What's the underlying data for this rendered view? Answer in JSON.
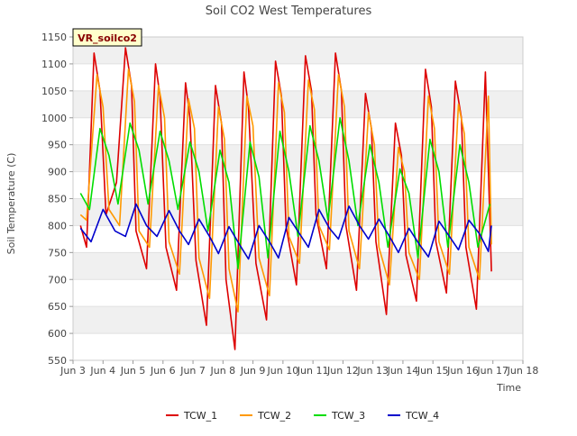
{
  "chart_data": {
    "type": "line",
    "title": "Soil CO2 West Temperatures",
    "xlabel": "Time",
    "ylabel": "Soil Temperature (C)",
    "ylim": [
      550,
      1150
    ],
    "xlim": [
      3,
      18
    ],
    "yticks": [
      550,
      600,
      650,
      700,
      750,
      800,
      850,
      900,
      950,
      1000,
      1050,
      1100,
      1150
    ],
    "xticks": [
      {
        "v": 3,
        "label": "Jun 3"
      },
      {
        "v": 4,
        "label": "Jun 4"
      },
      {
        "v": 5,
        "label": "Jun 5"
      },
      {
        "v": 6,
        "label": "Jun 6"
      },
      {
        "v": 7,
        "label": "Jun 7"
      },
      {
        "v": 8,
        "label": "Jun 8"
      },
      {
        "v": 9,
        "label": "Jun 9"
      },
      {
        "v": 10,
        "label": "Jun 10"
      },
      {
        "v": 11,
        "label": "Jun 11"
      },
      {
        "v": 12,
        "label": "Jun 12"
      },
      {
        "v": 13,
        "label": "Jun 13"
      },
      {
        "v": 14,
        "label": "Jun 14"
      },
      {
        "v": 15,
        "label": "Jun 15"
      },
      {
        "v": 16,
        "label": "Jun 16"
      },
      {
        "v": 17,
        "label": "Jun 17"
      },
      {
        "v": 18,
        "label": "Jun 18"
      }
    ],
    "grid": true,
    "legend_position": "bottom",
    "annotation": "VR_soilco2",
    "x_units": "day of June",
    "series": [
      {
        "name": "TCW_1",
        "color": "#dd0000",
        "x": [
          3.25,
          3.45,
          3.7,
          3.9,
          4.1,
          4.45,
          4.75,
          4.95,
          5.1,
          5.45,
          5.75,
          5.9,
          6.1,
          6.45,
          6.75,
          6.9,
          7.1,
          7.45,
          7.75,
          7.95,
          8.1,
          8.4,
          8.7,
          8.85,
          9.1,
          9.45,
          9.75,
          9.95,
          10.1,
          10.45,
          10.75,
          10.95,
          11.1,
          11.45,
          11.75,
          11.95,
          12.1,
          12.45,
          12.75,
          12.95,
          13.1,
          13.45,
          13.75,
          13.95,
          14.1,
          14.45,
          14.75,
          14.95,
          15.1,
          15.45,
          15.75,
          15.95,
          16.1,
          16.45,
          16.75,
          16.95
        ],
        "y": [
          800,
          760,
          1120,
          1050,
          820,
          880,
          1130,
          1060,
          790,
          720,
          1100,
          1040,
          760,
          680,
          1065,
          1000,
          735,
          615,
          1060,
          990,
          700,
          570,
          1085,
          1020,
          730,
          625,
          1105,
          1040,
          800,
          690,
          1115,
          1050,
          820,
          720,
          1120,
          1050,
          800,
          680,
          1045,
          980,
          770,
          635,
          990,
          930,
          745,
          660,
          1090,
          1020,
          770,
          675,
          1068,
          1000,
          760,
          645,
          1085,
          715
        ]
      },
      {
        "name": "TCW_2",
        "color": "#ff9900",
        "x": [
          3.25,
          3.45,
          3.8,
          4.0,
          4.2,
          4.55,
          4.85,
          5.05,
          5.2,
          5.55,
          5.85,
          6.05,
          6.2,
          6.55,
          6.85,
          7.05,
          7.2,
          7.55,
          7.85,
          8.05,
          8.2,
          8.5,
          8.8,
          9.0,
          9.2,
          9.55,
          9.85,
          10.05,
          10.2,
          10.55,
          10.85,
          11.05,
          11.2,
          11.55,
          11.85,
          12.05,
          12.2,
          12.55,
          12.85,
          13.05,
          13.2,
          13.55,
          13.85,
          14.05,
          14.2,
          14.55,
          14.85,
          15.05,
          15.2,
          15.55,
          15.85,
          16.05,
          16.2,
          16.55,
          16.85,
          16.95
        ],
        "y": [
          820,
          810,
          1080,
          1020,
          830,
          800,
          1090,
          1030,
          790,
          760,
          1060,
          1000,
          770,
          710,
          1035,
          980,
          740,
          665,
          1020,
          960,
          720,
          640,
          1040,
          985,
          740,
          670,
          1065,
          1010,
          780,
          730,
          1070,
          1015,
          800,
          755,
          1080,
          1020,
          790,
          720,
          1010,
          950,
          760,
          690,
          945,
          900,
          750,
          700,
          1040,
          980,
          770,
          710,
          1025,
          970,
          760,
          700,
          1040,
          765
        ]
      },
      {
        "name": "TCW_3",
        "color": "#00dd00",
        "x": [
          3.25,
          3.55,
          3.9,
          4.2,
          4.5,
          4.9,
          5.2,
          5.5,
          5.9,
          6.2,
          6.5,
          6.9,
          7.2,
          7.5,
          7.9,
          8.2,
          8.5,
          8.9,
          9.2,
          9.5,
          9.9,
          10.2,
          10.5,
          10.9,
          11.2,
          11.5,
          11.9,
          12.2,
          12.5,
          12.9,
          13.2,
          13.5,
          13.9,
          14.2,
          14.5,
          14.9,
          15.2,
          15.5,
          15.9,
          16.2,
          16.5,
          16.9
        ],
        "y": [
          860,
          830,
          980,
          930,
          840,
          990,
          940,
          840,
          975,
          920,
          830,
          955,
          900,
          790,
          940,
          880,
          720,
          955,
          890,
          740,
          975,
          900,
          780,
          985,
          920,
          810,
          1000,
          920,
          800,
          950,
          880,
          760,
          905,
          860,
          740,
          960,
          900,
          760,
          950,
          880,
          760,
          840
        ]
      },
      {
        "name": "TCW_4",
        "color": "#0000cc",
        "x": [
          3.25,
          3.6,
          4.0,
          4.4,
          4.75,
          5.1,
          5.45,
          5.8,
          6.2,
          6.55,
          6.85,
          7.2,
          7.55,
          7.85,
          8.2,
          8.55,
          8.85,
          9.2,
          9.55,
          9.85,
          10.2,
          10.55,
          10.85,
          11.2,
          11.55,
          11.85,
          12.2,
          12.55,
          12.85,
          13.2,
          13.55,
          13.85,
          14.2,
          14.55,
          14.85,
          15.2,
          15.55,
          15.85,
          16.2,
          16.55,
          16.85,
          16.95
        ],
        "y": [
          795,
          770,
          830,
          790,
          780,
          840,
          800,
          780,
          828,
          790,
          765,
          812,
          780,
          748,
          798,
          765,
          738,
          800,
          770,
          740,
          815,
          785,
          760,
          830,
          795,
          775,
          836,
          800,
          775,
          812,
          780,
          750,
          795,
          765,
          742,
          808,
          780,
          755,
          810,
          785,
          752,
          800
        ]
      }
    ]
  }
}
